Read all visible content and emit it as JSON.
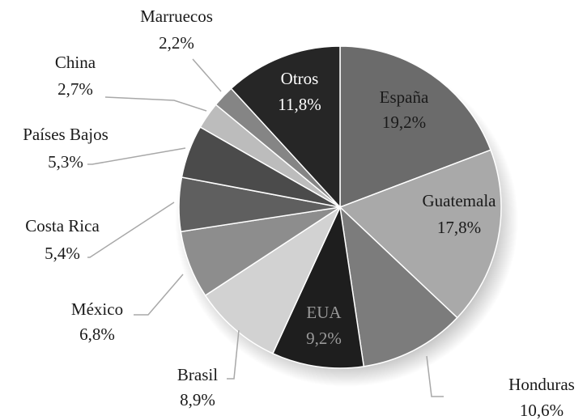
{
  "chart_data": {
    "type": "pie",
    "title": "",
    "slices": [
      {
        "label": "España",
        "value": 19.2,
        "value_label": "19,2%",
        "color": "#6b6b6b",
        "label_color": "#1a1a1a"
      },
      {
        "label": "Guatemala",
        "value": 17.8,
        "value_label": "17,8%",
        "color": "#a9a9a9",
        "label_color": "#1a1a1a"
      },
      {
        "label": "Honduras",
        "value": 10.6,
        "value_label": "10,6%",
        "color": "#7c7c7c",
        "label_color": "#1a1a1a"
      },
      {
        "label": "EUA",
        "value": 9.2,
        "value_label": "9,2%",
        "color": "#1e1e1e",
        "label_color": "#9a9a9a"
      },
      {
        "label": "Brasil",
        "value": 8.9,
        "value_label": "8,9%",
        "color": "#d2d2d2",
        "label_color": "#1a1a1a"
      },
      {
        "label": "México",
        "value": 6.8,
        "value_label": "6,8%",
        "color": "#8d8d8d",
        "label_color": "#1a1a1a"
      },
      {
        "label": "Costa Rica",
        "value": 5.4,
        "value_label": "5,4%",
        "color": "#5f5f5f",
        "label_color": "#1a1a1a"
      },
      {
        "label": "Países Bajos",
        "value": 5.3,
        "value_label": "5,3%",
        "color": "#4b4b4b",
        "label_color": "#1a1a1a"
      },
      {
        "label": "China",
        "value": 2.7,
        "value_label": "2,7%",
        "color": "#bcbcbc",
        "label_color": "#1a1a1a"
      },
      {
        "label": "Marruecos",
        "value": 2.2,
        "value_label": "2,2%",
        "color": "#858585",
        "label_color": "#1a1a1a"
      },
      {
        "label": "Otros",
        "value": 11.8,
        "value_label": "11,8%",
        "color": "#262626",
        "label_color": "#ffffff"
      }
    ]
  }
}
